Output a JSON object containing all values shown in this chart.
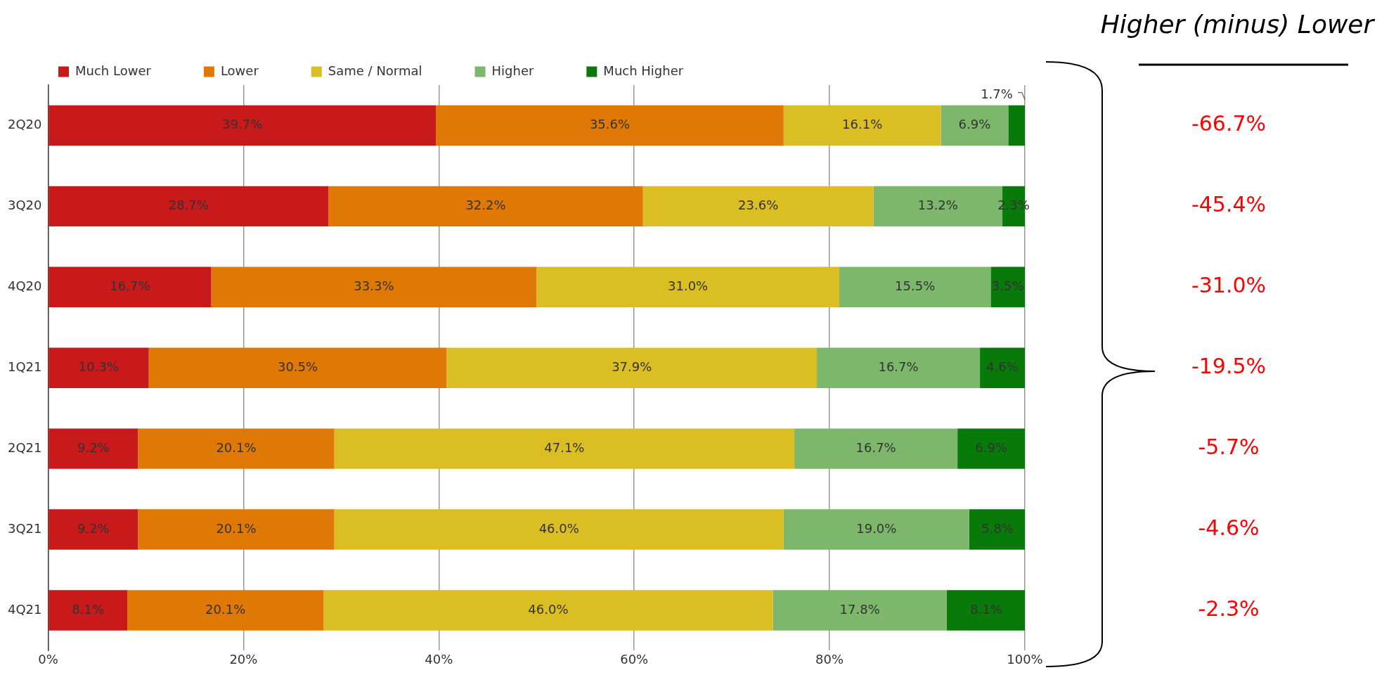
{
  "chart_data": {
    "type": "bar",
    "orientation": "horizontal",
    "stacked": true,
    "categories": [
      "2Q20",
      "3Q20",
      "4Q20",
      "1Q21",
      "2Q21",
      "3Q21",
      "4Q21"
    ],
    "series": [
      {
        "name": "Much Lower",
        "color": "#c8191b",
        "values": [
          39.7,
          28.7,
          16.7,
          10.3,
          9.2,
          9.2,
          8.1
        ],
        "value_labels": [
          "39.7%",
          "28.7%",
          "16.7%",
          "10.3%",
          "9.2%",
          "9.2%",
          "8.1%"
        ]
      },
      {
        "name": "Lower",
        "color": "#e07806",
        "values": [
          35.6,
          32.2,
          33.3,
          30.5,
          20.1,
          20.1,
          20.1
        ],
        "value_labels": [
          "35.6%",
          "32.2%",
          "33.3%",
          "30.5%",
          "20.1%",
          "20.1%",
          "20.1%"
        ]
      },
      {
        "name": "Same / Normal",
        "color": "#dbbd24",
        "values": [
          16.1,
          23.6,
          31.0,
          37.9,
          47.1,
          46.0,
          46.0
        ],
        "value_labels": [
          "16.1%",
          "23.6%",
          "31.0%",
          "37.9%",
          "47.1%",
          "46.0%",
          "46.0%"
        ]
      },
      {
        "name": "Higher",
        "color": "#7db76b",
        "values": [
          6.9,
          13.2,
          15.5,
          16.7,
          16.7,
          19.0,
          17.8
        ],
        "value_labels": [
          "6.9%",
          "13.2%",
          "15.5%",
          "16.7%",
          "16.7%",
          "19.0%",
          "17.8%"
        ]
      },
      {
        "name": "Much Higher",
        "color": "#087a0a",
        "values": [
          1.7,
          2.3,
          3.5,
          4.6,
          6.9,
          5.8,
          8.1
        ],
        "value_labels": [
          "1.7%",
          "2.3%",
          "3.5%",
          "4.6%",
          "6.9%",
          "5.8%",
          "8.1%"
        ]
      }
    ],
    "xlim": [
      0,
      100
    ],
    "xticks": [
      {
        "value": 0,
        "label": "0%"
      },
      {
        "value": 20,
        "label": "20%"
      },
      {
        "value": 40,
        "label": "40%"
      },
      {
        "value": 60,
        "label": "60%"
      },
      {
        "value": 80,
        "label": "80%"
      },
      {
        "value": 100,
        "label": "100%"
      }
    ],
    "grid": "x",
    "legend": "top",
    "annotations": [
      "Higher (minus) Lower",
      "-66.7%",
      "-45.4%",
      "-31.0%",
      "-19.5%",
      "-5.7%",
      "-4.6%",
      "-2.3%"
    ]
  }
}
